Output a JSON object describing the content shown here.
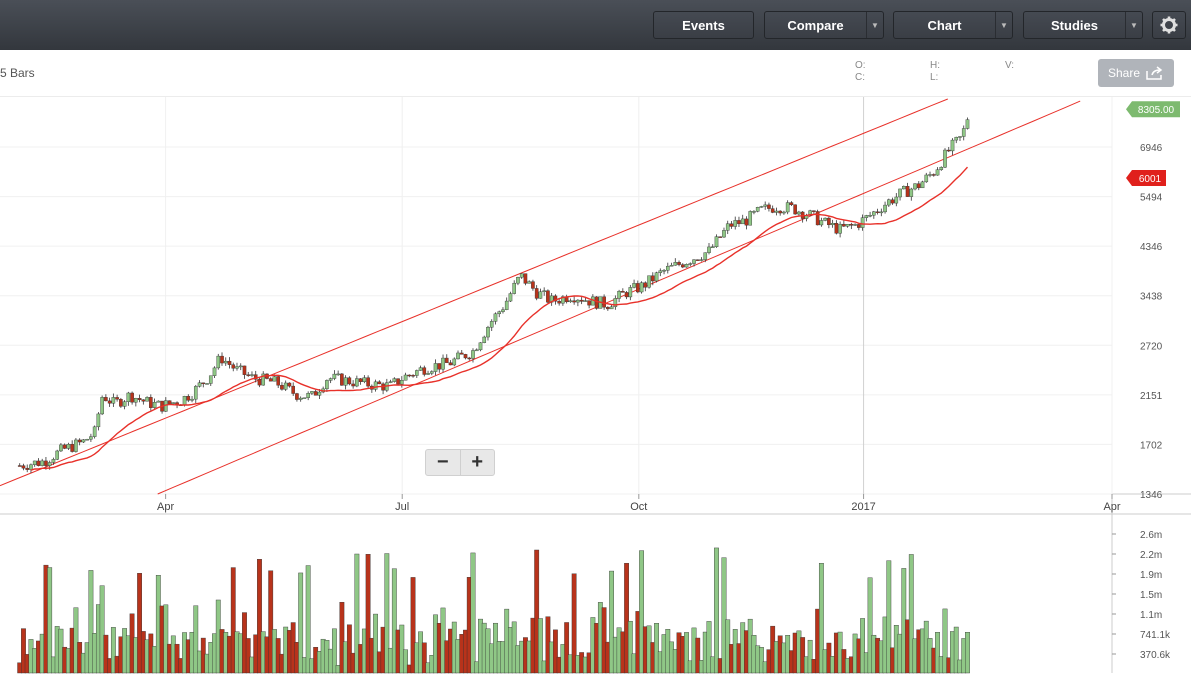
{
  "toolbar": {
    "events_label": "Events",
    "compare_label": "Compare",
    "chart_label": "Chart",
    "studies_label": "Studies"
  },
  "header": {
    "bars_label": "5 Bars",
    "o_label": "O:",
    "c_label": "C:",
    "h_label": "H:",
    "l_label": "L:",
    "v_label": "V:",
    "share_label": "Share"
  },
  "colors": {
    "up": "#8fc786",
    "down": "#b8331b",
    "trend": "#e8312a",
    "last_badge": "#7dba6f",
    "ma_badge": "#e0201c"
  },
  "chart_data": {
    "type": "candlestick",
    "x_ticks": [
      {
        "label": "Apr",
        "t": 3.0
      },
      {
        "label": "Jul",
        "t": 6.0
      },
      {
        "label": "Oct",
        "t": 9.0
      },
      {
        "label": "2017",
        "t": 11.85
      },
      {
        "label": "Apr",
        "t": 15.0
      }
    ],
    "xlim": [
      0.9,
      15.0
    ],
    "y_ticks": [
      1346,
      1702,
      2151,
      2720,
      3438,
      4346,
      5494,
      6946
    ],
    "ylim": [
      1346,
      8800
    ],
    "y_scale": "log",
    "last_price": "8305.00",
    "ma_label": "6001",
    "price": [
      [
        1.15,
        1540
      ],
      [
        1.45,
        1570
      ],
      [
        1.7,
        1660
      ],
      [
        1.95,
        1720
      ],
      [
        2.1,
        1800
      ],
      [
        2.2,
        2150
      ],
      [
        2.35,
        2060
      ],
      [
        2.55,
        2150
      ],
      [
        2.75,
        2080
      ],
      [
        2.95,
        2040
      ],
      [
        3.2,
        2100
      ],
      [
        3.35,
        2180
      ],
      [
        3.55,
        2350
      ],
      [
        3.7,
        2570
      ],
      [
        3.9,
        2420
      ],
      [
        4.1,
        2330
      ],
      [
        4.4,
        2280
      ],
      [
        4.65,
        2160
      ],
      [
        4.85,
        2130
      ],
      [
        5.05,
        2330
      ],
      [
        5.3,
        2300
      ],
      [
        5.6,
        2260
      ],
      [
        5.85,
        2240
      ],
      [
        6.0,
        2330
      ],
      [
        6.3,
        2450
      ],
      [
        6.6,
        2500
      ],
      [
        6.9,
        2650
      ],
      [
        7.1,
        3000
      ],
      [
        7.3,
        3300
      ],
      [
        7.5,
        3780
      ],
      [
        7.7,
        3500
      ],
      [
        7.9,
        3350
      ],
      [
        8.15,
        3450
      ],
      [
        8.4,
        3350
      ],
      [
        8.6,
        3300
      ],
      [
        8.85,
        3500
      ],
      [
        9.05,
        3600
      ],
      [
        9.3,
        3850
      ],
      [
        9.6,
        4050
      ],
      [
        9.9,
        4250
      ],
      [
        10.15,
        4800
      ],
      [
        10.35,
        4900
      ],
      [
        10.55,
        5150
      ],
      [
        10.75,
        5250
      ],
      [
        10.95,
        5200
      ],
      [
        11.15,
        5050
      ],
      [
        11.35,
        4850
      ],
      [
        11.55,
        4700
      ],
      [
        11.75,
        4800
      ],
      [
        11.95,
        5050
      ],
      [
        12.15,
        5350
      ],
      [
        12.35,
        5600
      ],
      [
        12.55,
        5800
      ],
      [
        12.75,
        6200
      ],
      [
        12.95,
        6900
      ],
      [
        13.1,
        7300
      ],
      [
        13.2,
        8305
      ]
    ],
    "volume_ticks": [
      "2.6m",
      "2.2m",
      "1.9m",
      "1.5m",
      "1.1m",
      "741.1k",
      "370.6k"
    ],
    "volume_max": 3000000
  }
}
